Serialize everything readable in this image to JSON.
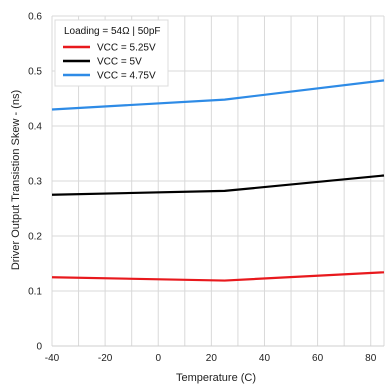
{
  "chart_data": {
    "type": "line",
    "title": "",
    "xlabel": "Temperature (C)",
    "ylabel": "Driver Output Transistion Skew - (ns)",
    "xlim": [
      -40,
      85
    ],
    "ylim": [
      0,
      0.6
    ],
    "xticks": [
      -40,
      -20,
      0,
      20,
      40,
      60,
      80
    ],
    "yticks": [
      0,
      0.1,
      0.2,
      0.3,
      0.4,
      0.5,
      0.6
    ],
    "grid": true,
    "legend": {
      "title": "Loading = 54Ω | 50pF",
      "placement": "top-left"
    },
    "series": [
      {
        "name": "VCC = 5.25V",
        "color": "#e8191d",
        "x": [
          -40,
          25,
          85
        ],
        "y": [
          0.125,
          0.119,
          0.134
        ]
      },
      {
        "name": "VCC = 5V",
        "color": "#000000",
        "x": [
          -40,
          25,
          85
        ],
        "y": [
          0.275,
          0.282,
          0.31
        ]
      },
      {
        "name": "VCC = 4.75V",
        "color": "#2e8be6",
        "x": [
          -40,
          25,
          85
        ],
        "y": [
          0.43,
          0.448,
          0.483
        ]
      }
    ]
  }
}
